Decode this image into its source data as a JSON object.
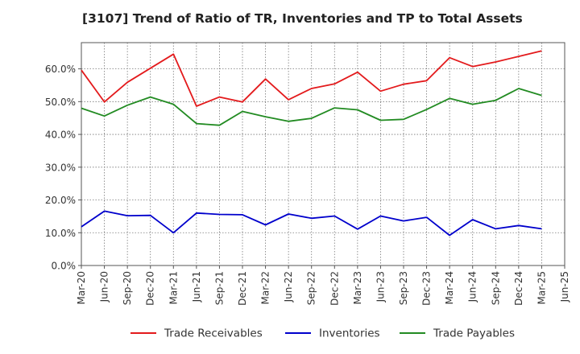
{
  "chart_data": {
    "type": "line",
    "title": "[3107]  Trend of Ratio of TR, Inventories and TP to Total Assets",
    "xlabel": "",
    "ylabel": "",
    "ylim": [
      0,
      68
    ],
    "y_ticks": [
      0,
      10,
      20,
      30,
      40,
      50,
      60
    ],
    "y_tick_labels": [
      "0.0%",
      "10.0%",
      "20.0%",
      "30.0%",
      "40.0%",
      "50.0%",
      "60.0%"
    ],
    "x_tick_labels": [
      "Mar-20",
      "Jun-20",
      "Sep-20",
      "Dec-20",
      "Mar-21",
      "Jun-21",
      "Sep-21",
      "Dec-21",
      "Mar-22",
      "Jun-22",
      "Sep-22",
      "Dec-22",
      "Mar-23",
      "Jun-23",
      "Sep-23",
      "Dec-23",
      "Mar-24",
      "Jun-24",
      "Sep-24",
      "Dec-24",
      "Mar-25",
      "Jun-25"
    ],
    "categories": [
      "Mar-20",
      "Jun-20",
      "Sep-20",
      "Dec-20",
      "Mar-21",
      "Jun-21",
      "Sep-21",
      "Dec-21",
      "Mar-22",
      "Jun-22",
      "Sep-22",
      "Dec-22",
      "Mar-23",
      "Jun-23",
      "Sep-23",
      "Dec-23",
      "Mar-24",
      "Jun-24",
      "Sep-24",
      "Dec-24",
      "Mar-25"
    ],
    "series": [
      {
        "name": "Trade Receivables",
        "color": "#e31a1c",
        "values": [
          59.6,
          49.9,
          55.9,
          60.2,
          64.5,
          48.6,
          51.4,
          49.9,
          56.9,
          50.6,
          54.0,
          55.4,
          59.0,
          53.2,
          55.3,
          56.4,
          63.4,
          60.7,
          62.1,
          63.8,
          65.5
        ]
      },
      {
        "name": "Inventories",
        "color": "#0000cc",
        "values": [
          11.8,
          16.6,
          15.2,
          15.3,
          10.0,
          16.0,
          15.6,
          15.5,
          12.4,
          15.7,
          14.4,
          15.1,
          11.1,
          15.1,
          13.6,
          14.7,
          9.2,
          14.0,
          11.2,
          12.2,
          11.2
        ]
      },
      {
        "name": "Trade Payables",
        "color": "#228b22",
        "values": [
          48.0,
          45.6,
          48.9,
          51.4,
          49.2,
          43.3,
          42.8,
          47.0,
          45.4,
          44.0,
          44.9,
          48.1,
          47.5,
          44.3,
          44.6,
          47.6,
          51.0,
          49.2,
          50.4,
          54.0,
          51.9
        ]
      }
    ],
    "grid": true,
    "legend_position": "bottom"
  }
}
